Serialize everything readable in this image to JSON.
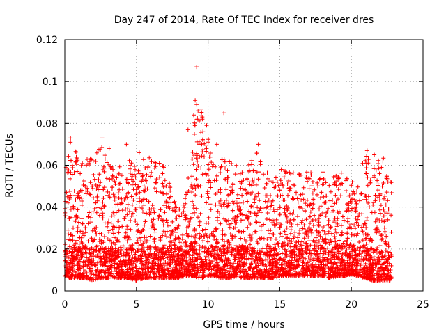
{
  "chart_data": {
    "type": "scatter",
    "title": "Day 247 of 2014, Rate Of TEC Index for receiver dres",
    "xlabel": "GPS time / hours",
    "ylabel": "ROTI / TECUs",
    "xlim": [
      0,
      25
    ],
    "ylim": [
      0,
      0.12
    ],
    "x_ticks": [
      "0",
      "5",
      "10",
      "15",
      "20",
      "25"
    ],
    "y_ticks": [
      "0",
      "0.02",
      "0.04",
      "0.06",
      "0.08",
      "0.1",
      "0.12"
    ],
    "grid": true,
    "marker": "+",
    "color": "#ff0000",
    "data_x_range": [
      0,
      22.8
    ],
    "envelope": {
      "x": [
        0,
        0.5,
        1,
        1.5,
        2,
        2.5,
        3,
        3.5,
        4,
        4.5,
        5,
        5.5,
        6,
        6.5,
        7,
        7.5,
        8,
        8.5,
        9,
        9.5,
        10,
        10.5,
        11,
        11.5,
        12,
        12.5,
        13,
        13.5,
        14,
        14.5,
        15,
        15.5,
        16,
        16.5,
        17,
        17.5,
        18,
        18.5,
        19,
        19.5,
        20,
        20.5,
        21,
        21.5,
        22,
        22.5,
        22.8
      ],
      "upper": [
        0.058,
        0.072,
        0.062,
        0.063,
        0.064,
        0.073,
        0.062,
        0.058,
        0.06,
        0.07,
        0.057,
        0.066,
        0.063,
        0.063,
        0.063,
        0.045,
        0.04,
        0.05,
        0.079,
        0.091,
        0.08,
        0.06,
        0.063,
        0.066,
        0.06,
        0.058,
        0.062,
        0.07,
        0.058,
        0.052,
        0.06,
        0.058,
        0.057,
        0.058,
        0.057,
        0.058,
        0.06,
        0.055,
        0.055,
        0.059,
        0.055,
        0.054,
        0.067,
        0.058,
        0.065,
        0.062,
        0.058
      ],
      "lower": [
        0.007,
        0.006,
        0.006,
        0.006,
        0.005,
        0.006,
        0.006,
        0.006,
        0.006,
        0.006,
        0.005,
        0.006,
        0.006,
        0.006,
        0.006,
        0.006,
        0.006,
        0.007,
        0.007,
        0.006,
        0.007,
        0.007,
        0.006,
        0.006,
        0.007,
        0.006,
        0.006,
        0.006,
        0.006,
        0.006,
        0.007,
        0.007,
        0.007,
        0.007,
        0.007,
        0.007,
        0.007,
        0.006,
        0.007,
        0.007,
        0.008,
        0.007,
        0.006,
        0.005,
        0.005,
        0.005,
        0.005
      ]
    },
    "notable_points": [
      {
        "x": 9.2,
        "y": 0.107
      },
      {
        "x": 9.1,
        "y": 0.091
      },
      {
        "x": 9.2,
        "y": 0.089
      },
      {
        "x": 9.3,
        "y": 0.086
      },
      {
        "x": 9.0,
        "y": 0.084
      },
      {
        "x": 11.1,
        "y": 0.085
      },
      {
        "x": 9.6,
        "y": 0.082
      },
      {
        "x": 8.6,
        "y": 0.077
      },
      {
        "x": 9.9,
        "y": 0.079
      },
      {
        "x": 0.4,
        "y": 0.073
      },
      {
        "x": 0.4,
        "y": 0.071
      },
      {
        "x": 2.6,
        "y": 0.073
      },
      {
        "x": 3.1,
        "y": 0.068
      },
      {
        "x": 4.3,
        "y": 0.07
      },
      {
        "x": 5.2,
        "y": 0.066
      },
      {
        "x": 10.6,
        "y": 0.07
      },
      {
        "x": 13.5,
        "y": 0.07
      },
      {
        "x": 21.1,
        "y": 0.067
      },
      {
        "x": 21.6,
        "y": 0.065
      },
      {
        "x": 22.2,
        "y": 0.062
      },
      {
        "x": 22.1,
        "y": 0.059
      }
    ]
  }
}
